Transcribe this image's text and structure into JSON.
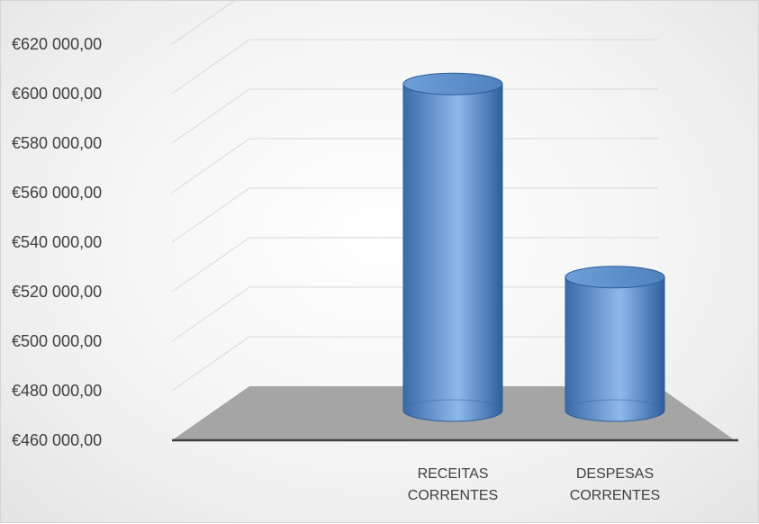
{
  "chart_data": {
    "type": "bar",
    "style": "3d-cylinder",
    "categories": [
      "RECEITAS CORRENTES",
      "DESPESAS CORRENTES"
    ],
    "category_lines": [
      [
        "RECEITAS",
        "CORRENTES"
      ],
      [
        "DESPESAS",
        "CORRENTES"
      ]
    ],
    "values": [
      593000,
      515000
    ],
    "ylim": [
      460000,
      620000
    ],
    "ytick_values": [
      460000,
      480000,
      500000,
      520000,
      540000,
      560000,
      580000,
      600000,
      620000
    ],
    "ytick_labels": [
      "€460 000,00",
      "€480 000,00",
      "€500 000,00",
      "€520 000,00",
      "€540 000,00",
      "€560 000,00",
      "€580 000,00",
      "€600 000,00",
      "€620 000,00"
    ],
    "title": "",
    "xlabel": "",
    "ylabel": "",
    "grid": true,
    "legend": "none",
    "colors": {
      "bar": "#4f81bd",
      "bar_light": "#8fb9ec",
      "bar_dark": "#2c5c99",
      "floor": "#a5a5a5",
      "gridline": "#d9d9d9",
      "axis": "#404040"
    }
  }
}
